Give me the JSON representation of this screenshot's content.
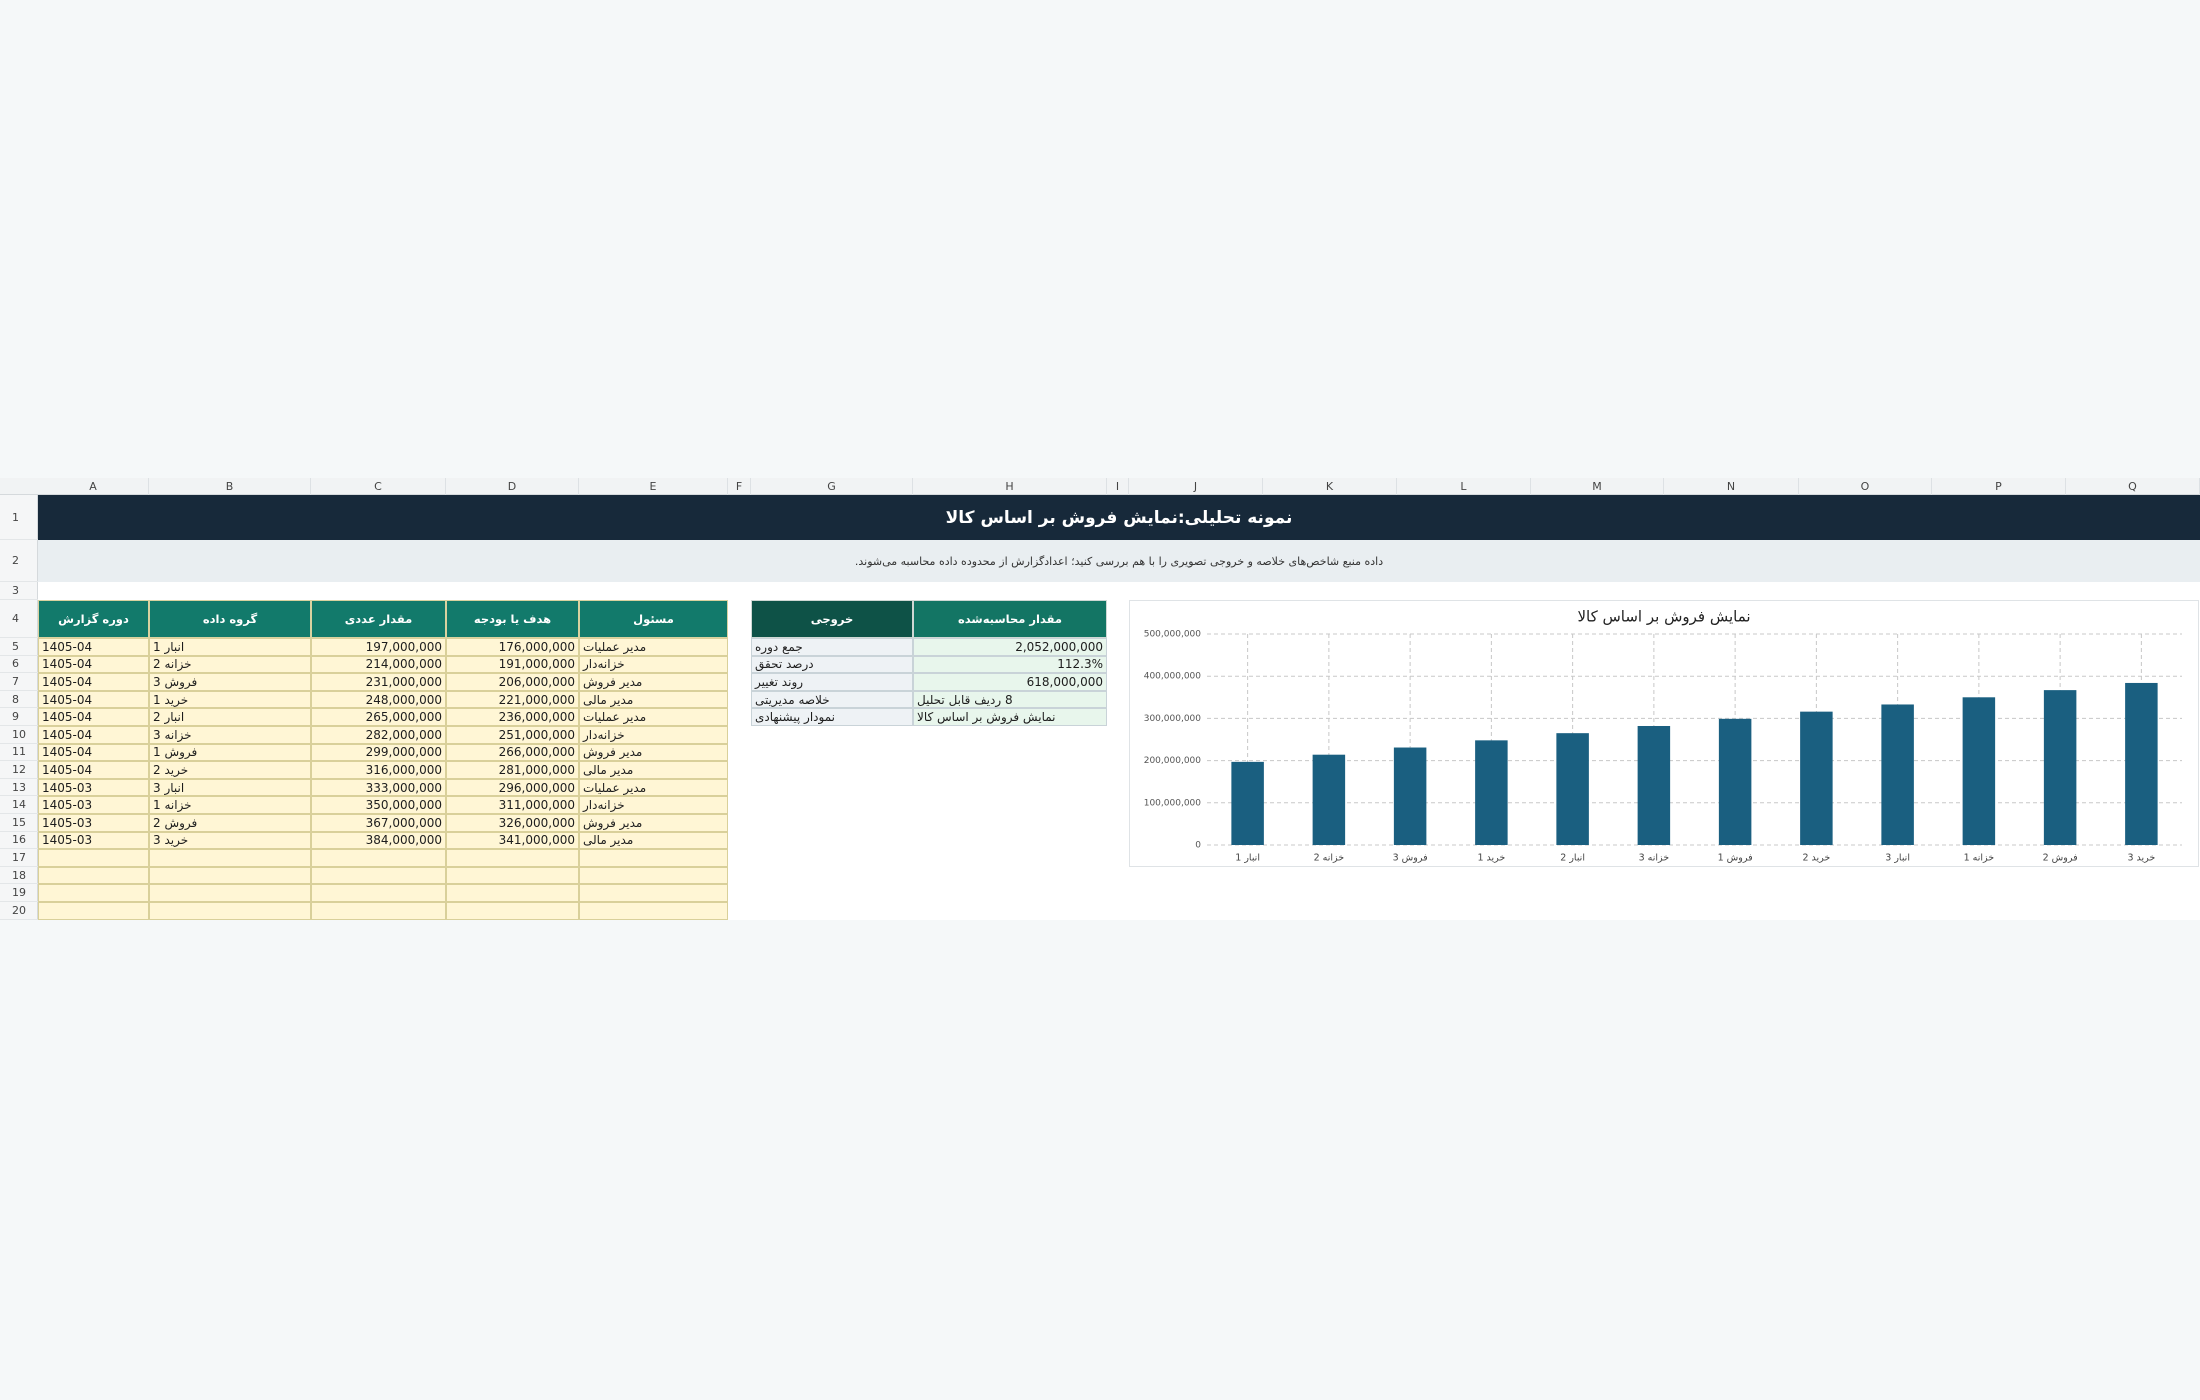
{
  "sheet": {
    "column_headers": [
      "A",
      "B",
      "C",
      "D",
      "E",
      "F",
      "G",
      "H",
      "I",
      "J",
      "K",
      "L",
      "M",
      "N",
      "O",
      "P",
      "Q"
    ],
    "row_headers": [
      1,
      2,
      3,
      4,
      5,
      6,
      7,
      8,
      9,
      10,
      11,
      12,
      13,
      14,
      15,
      16,
      17,
      18,
      19,
      20
    ],
    "title": "نمونه تحلیلی:نمایش فروش بر اساس کالا",
    "subtitle": "داده منبع شاخص‌های خلاصه و خروجی تصویری را با هم بررسی کنید؛ اعدادگزارش از محدوده داده محاسبه می‌شوند.",
    "table": {
      "header": [
        "دوره گزارش",
        "گروه داده",
        "مقدار عددی",
        "هدف یا بودجه",
        "مسئول"
      ],
      "rows": [
        [
          "1405-04",
          "انبار 1",
          "197,000,000",
          "176,000,000",
          "مدیر عملیات"
        ],
        [
          "1405-04",
          "خزانه 2",
          "214,000,000",
          "191,000,000",
          "خزانه‌دار"
        ],
        [
          "1405-04",
          "فروش 3",
          "231,000,000",
          "206,000,000",
          "مدیر فروش"
        ],
        [
          "1405-04",
          "خرید 1",
          "248,000,000",
          "221,000,000",
          "مدیر مالی"
        ],
        [
          "1405-04",
          "انبار 2",
          "265,000,000",
          "236,000,000",
          "مدیر عملیات"
        ],
        [
          "1405-04",
          "خزانه 3",
          "282,000,000",
          "251,000,000",
          "خزانه‌دار"
        ],
        [
          "1405-04",
          "فروش 1",
          "299,000,000",
          "266,000,000",
          "مدیر فروش"
        ],
        [
          "1405-04",
          "خرید 2",
          "316,000,000",
          "281,000,000",
          "مدیر مالی"
        ],
        [
          "1405-03",
          "انبار 3",
          "333,000,000",
          "296,000,000",
          "مدیر عملیات"
        ],
        [
          "1405-03",
          "خزانه 1",
          "350,000,000",
          "311,000,000",
          "خزانه‌دار"
        ],
        [
          "1405-03",
          "فروش 2",
          "367,000,000",
          "326,000,000",
          "مدیر فروش"
        ],
        [
          "1405-03",
          "خرید 3",
          "384,000,000",
          "341,000,000",
          "مدیر مالی"
        ]
      ]
    },
    "summary": {
      "header": [
        "خروجی",
        "مقدار محاسبه‌شده"
      ],
      "rows": [
        [
          "جمع دوره",
          "2,052,000,000"
        ],
        [
          "درصد تحقق",
          "112.3%"
        ],
        [
          "روند تغییر",
          "618,000,000"
        ],
        [
          "خلاصه مدیریتی",
          "8 ردیف قابل تحلیل"
        ],
        [
          "نمودار پیشنهادی",
          "نمایش فروش بر اساس کالا"
        ]
      ]
    }
  },
  "chart_data": {
    "type": "bar",
    "title": "نمایش فروش بر اساس کالا",
    "categories": [
      "انبار 1",
      "خزانه 2",
      "فروش 3",
      "خرید 1",
      "انبار 2",
      "خزانه 3",
      "فروش 1",
      "خرید 2",
      "انبار 3",
      "خزانه 1",
      "فروش 2",
      "خرید 3"
    ],
    "values": [
      197000000,
      214000000,
      231000000,
      248000000,
      265000000,
      282000000,
      299000000,
      316000000,
      333000000,
      350000000,
      367000000,
      384000000
    ],
    "color": "#1a5f80",
    "ylim": [
      0,
      500000000
    ],
    "yticks": [
      0,
      {
        "value": 100000000,
        "label": "100,000,000"
      },
      {
        "value": 200000000,
        "label": "200,000,000"
      },
      {
        "value": 300000000,
        "label": "300,000,000"
      },
      {
        "value": 400000000,
        "label": "400,000,000"
      },
      {
        "value": 500000000,
        "label": "500,000,000"
      }
    ],
    "grid": true
  }
}
